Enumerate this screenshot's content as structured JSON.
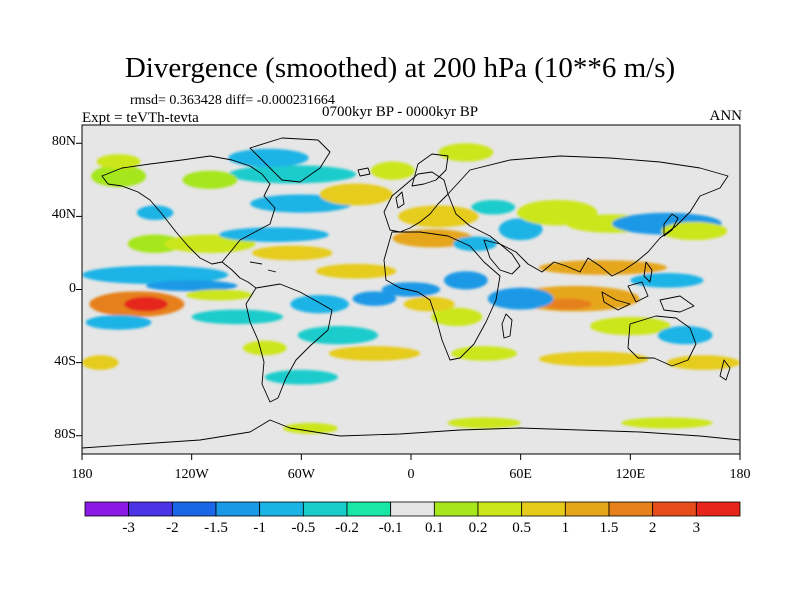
{
  "title": "Divergence (smoothed) at 200 hPa (10**6 m/s)",
  "stats": "rmsd= 0.363428  diff= -0.000231664",
  "experiment": "Expt = teVTh-tevta",
  "period": "0700kyr BP - 0000kyr BP",
  "season": "ANN",
  "map": {
    "projection": "cylindrical equidistant",
    "lon_range": [
      -180,
      180
    ],
    "lat_range": [
      -90,
      90
    ],
    "lat_ticks": [
      {
        "value": 80,
        "label": "80N"
      },
      {
        "value": 40,
        "label": "40N"
      },
      {
        "value": 0,
        "label": "0"
      },
      {
        "value": -40,
        "label": "40S"
      },
      {
        "value": -80,
        "label": "80S"
      }
    ],
    "lon_ticks": [
      {
        "value": -180,
        "label": "180"
      },
      {
        "value": -120,
        "label": "120W"
      },
      {
        "value": -60,
        "label": "60W"
      },
      {
        "value": 0,
        "label": "0"
      },
      {
        "value": 60,
        "label": "60E"
      },
      {
        "value": 120,
        "label": "120E"
      },
      {
        "value": 180,
        "label": "180"
      }
    ],
    "background_color": "#e6e6e6"
  },
  "colorbar": {
    "colors": [
      "#8c1ae6",
      "#4d33e6",
      "#1a66e6",
      "#1a99e6",
      "#1ab3e6",
      "#1acccc",
      "#1ae6a6",
      "#e6e6e6",
      "#a6e61a",
      "#cce61a",
      "#e6cc1a",
      "#e6a61a",
      "#e6801a",
      "#e64d1a",
      "#e6261a"
    ],
    "labels": [
      "-3",
      "-2",
      "-1.5",
      "-1",
      "-0.5",
      "-0.2",
      "-0.1",
      "0.1",
      "0.2",
      "0.5",
      "1",
      "1.5",
      "2",
      "3"
    ]
  },
  "anomaly_regions": [
    {
      "lon": -150,
      "lat": -8,
      "rlon": 26,
      "rlat": 7,
      "level": 12
    },
    {
      "lon": -145,
      "lat": -8,
      "rlon": 12,
      "rlat": 4,
      "level": 14
    },
    {
      "lon": -140,
      "lat": 8,
      "rlon": 40,
      "rlat": 5,
      "level": 4
    },
    {
      "lon": -120,
      "lat": 2,
      "rlon": 25,
      "rlat": 3,
      "level": 3
    },
    {
      "lon": -105,
      "lat": -3,
      "rlon": 18,
      "rlat": 3,
      "level": 9
    },
    {
      "lon": -160,
      "lat": -18,
      "rlon": 18,
      "rlat": 4,
      "level": 4
    },
    {
      "lon": -95,
      "lat": -15,
      "rlon": 25,
      "rlat": 4,
      "level": 5
    },
    {
      "lon": -140,
      "lat": 25,
      "rlon": 15,
      "rlat": 5,
      "level": 8
    },
    {
      "lon": -110,
      "lat": 25,
      "rlon": 25,
      "rlat": 5,
      "level": 9
    },
    {
      "lon": -75,
      "lat": 30,
      "rlon": 30,
      "rlat": 4,
      "level": 4
    },
    {
      "lon": -65,
      "lat": 20,
      "rlon": 22,
      "rlat": 4,
      "level": 10
    },
    {
      "lon": -140,
      "lat": 42,
      "rlon": 10,
      "rlat": 4,
      "level": 4
    },
    {
      "lon": -60,
      "lat": 47,
      "rlon": 28,
      "rlat": 5,
      "level": 4
    },
    {
      "lon": -65,
      "lat": 63,
      "rlon": 35,
      "rlat": 5,
      "level": 5
    },
    {
      "lon": -160,
      "lat": 62,
      "rlon": 15,
      "rlat": 6,
      "level": 8
    },
    {
      "lon": -110,
      "lat": 60,
      "rlon": 15,
      "rlat": 5,
      "level": 8
    },
    {
      "lon": -78,
      "lat": 72,
      "rlon": 22,
      "rlat": 5,
      "level": 4
    },
    {
      "lon": -10,
      "lat": 65,
      "rlon": 12,
      "rlat": 5,
      "level": 9
    },
    {
      "lon": 30,
      "lat": 75,
      "rlon": 15,
      "rlat": 5,
      "level": 9
    },
    {
      "lon": -30,
      "lat": 52,
      "rlon": 20,
      "rlat": 6,
      "level": 10
    },
    {
      "lon": 15,
      "lat": 40,
      "rlon": 22,
      "rlat": 6,
      "level": 10
    },
    {
      "lon": 12,
      "lat": 28,
      "rlon": 22,
      "rlat": 5,
      "level": 11
    },
    {
      "lon": 45,
      "lat": 45,
      "rlon": 12,
      "rlat": 4,
      "level": 5
    },
    {
      "lon": 35,
      "lat": 25,
      "rlon": 12,
      "rlat": 4,
      "level": 4
    },
    {
      "lon": 60,
      "lat": 33,
      "rlon": 12,
      "rlat": 6,
      "level": 4
    },
    {
      "lon": 80,
      "lat": 42,
      "rlon": 22,
      "rlat": 7,
      "level": 9
    },
    {
      "lon": 110,
      "lat": 36,
      "rlon": 25,
      "rlat": 5,
      "level": 9
    },
    {
      "lon": 140,
      "lat": 36,
      "rlon": 30,
      "rlat": 6,
      "level": 3
    },
    {
      "lon": 155,
      "lat": 32,
      "rlon": 18,
      "rlat": 5,
      "level": 9
    },
    {
      "lon": 105,
      "lat": 12,
      "rlon": 35,
      "rlat": 4,
      "level": 11
    },
    {
      "lon": 140,
      "lat": 5,
      "rlon": 20,
      "rlat": 4,
      "level": 4
    },
    {
      "lon": 90,
      "lat": -5,
      "rlon": 35,
      "rlat": 7,
      "level": 11
    },
    {
      "lon": 85,
      "lat": -8,
      "rlon": 14,
      "rlat": 3,
      "level": 12
    },
    {
      "lon": 60,
      "lat": -5,
      "rlon": 18,
      "rlat": 6,
      "level": 3
    },
    {
      "lon": 120,
      "lat": -20,
      "rlon": 22,
      "rlat": 5,
      "level": 9
    },
    {
      "lon": 150,
      "lat": -25,
      "rlon": 15,
      "rlat": 5,
      "level": 4
    },
    {
      "lon": 25,
      "lat": -15,
      "rlon": 14,
      "rlat": 5,
      "level": 9
    },
    {
      "lon": 30,
      "lat": 5,
      "rlon": 12,
      "rlat": 5,
      "level": 3
    },
    {
      "lon": 0,
      "lat": 0,
      "rlon": 16,
      "rlat": 4,
      "level": 3
    },
    {
      "lon": 10,
      "lat": -8,
      "rlon": 14,
      "rlat": 4,
      "level": 10
    },
    {
      "lon": -50,
      "lat": -8,
      "rlon": 16,
      "rlat": 5,
      "level": 4
    },
    {
      "lon": -20,
      "lat": -5,
      "rlon": 12,
      "rlat": 4,
      "level": 3
    },
    {
      "lon": -30,
      "lat": 10,
      "rlon": 22,
      "rlat": 4,
      "level": 10
    },
    {
      "lon": -40,
      "lat": -25,
      "rlon": 22,
      "rlat": 5,
      "level": 5
    },
    {
      "lon": -20,
      "lat": -35,
      "rlon": 25,
      "rlat": 4,
      "level": 10
    },
    {
      "lon": -80,
      "lat": -32,
      "rlon": 12,
      "rlat": 4,
      "level": 9
    },
    {
      "lon": -60,
      "lat": -48,
      "rlon": 20,
      "rlat": 4,
      "level": 5
    },
    {
      "lon": 40,
      "lat": -35,
      "rlon": 18,
      "rlat": 4,
      "level": 9
    },
    {
      "lon": 100,
      "lat": -38,
      "rlon": 30,
      "rlat": 4,
      "level": 10
    },
    {
      "lon": 160,
      "lat": -40,
      "rlon": 20,
      "rlat": 4,
      "level": 10
    },
    {
      "lon": -170,
      "lat": -40,
      "rlon": 10,
      "rlat": 4,
      "level": 10
    },
    {
      "lon": 40,
      "lat": -73,
      "rlon": 20,
      "rlat": 3,
      "level": 9
    },
    {
      "lon": 140,
      "lat": -73,
      "rlon": 25,
      "rlat": 3,
      "level": 9
    },
    {
      "lon": -55,
      "lat": -76,
      "rlon": 15,
      "rlat": 3,
      "level": 9
    },
    {
      "lon": -160,
      "lat": 70,
      "rlon": 12,
      "rlat": 4,
      "level": 9
    }
  ]
}
